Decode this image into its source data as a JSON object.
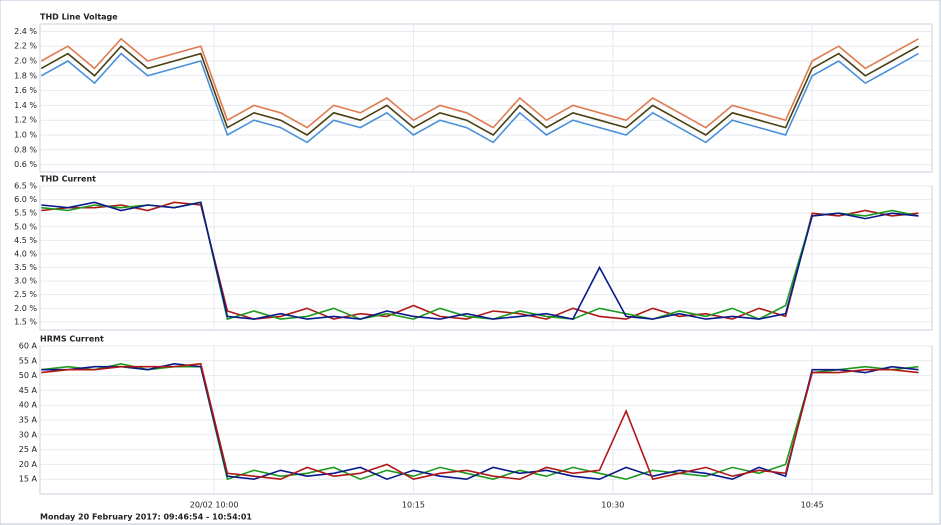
{
  "chart_data": [
    {
      "type": "line",
      "title": "THD Line Voltage",
      "x": [
        "09:47",
        "09:49",
        "09:51",
        "09:53",
        "09:55",
        "09:57",
        "09:59",
        "10:01",
        "10:03",
        "10:05",
        "10:07",
        "10:09",
        "10:11",
        "10:13",
        "10:15",
        "10:17",
        "10:19",
        "10:21",
        "10:23",
        "10:25",
        "10:27",
        "10:29",
        "10:31",
        "10:33",
        "10:35",
        "10:37",
        "10:39",
        "10:41",
        "10:43",
        "10:45",
        "10:47",
        "10:49",
        "10:51",
        "10:53"
      ],
      "xlim": [
        "09:46:54",
        "10:54:01"
      ],
      "ylim": [
        0.5,
        2.5
      ],
      "yticks": [
        {
          "value": 0.6,
          "label": "0.6 %"
        },
        {
          "value": 0.8,
          "label": "0.8 %"
        },
        {
          "value": 1.0,
          "label": "1.0 %"
        },
        {
          "value": 1.2,
          "label": "1.2 %"
        },
        {
          "value": 1.4,
          "label": "1.4 %"
        },
        {
          "value": 1.6,
          "label": "1.6 %"
        },
        {
          "value": 1.8,
          "label": "1.8 %"
        },
        {
          "value": 2.0,
          "label": "2.0 %"
        },
        {
          "value": 2.2,
          "label": "2.2 %"
        },
        {
          "value": 2.4,
          "label": "2.4 %"
        }
      ],
      "grid": true,
      "series": [
        {
          "color": "#4a90d9",
          "values": [
            1.8,
            2.0,
            1.7,
            2.1,
            1.8,
            1.9,
            2.0,
            1.0,
            1.2,
            1.1,
            0.9,
            1.2,
            1.1,
            1.3,
            1.0,
            1.2,
            1.1,
            0.9,
            1.3,
            1.0,
            1.2,
            1.1,
            1.0,
            1.3,
            1.1,
            0.9,
            1.2,
            1.1,
            1.0,
            1.8,
            2.0,
            1.7,
            1.9,
            2.1
          ]
        },
        {
          "color": "#e07b50",
          "values": [
            2.0,
            2.2,
            1.9,
            2.3,
            2.0,
            2.1,
            2.2,
            1.2,
            1.4,
            1.3,
            1.1,
            1.4,
            1.3,
            1.5,
            1.2,
            1.4,
            1.3,
            1.1,
            1.5,
            1.2,
            1.4,
            1.3,
            1.2,
            1.5,
            1.3,
            1.1,
            1.4,
            1.3,
            1.2,
            2.0,
            2.2,
            1.9,
            2.1,
            2.3
          ]
        },
        {
          "color": "#4a3f10",
          "values": [
            1.9,
            2.1,
            1.8,
            2.2,
            1.9,
            2.0,
            2.1,
            1.1,
            1.3,
            1.2,
            1.0,
            1.3,
            1.2,
            1.4,
            1.1,
            1.3,
            1.2,
            1.0,
            1.4,
            1.1,
            1.3,
            1.2,
            1.1,
            1.4,
            1.2,
            1.0,
            1.3,
            1.2,
            1.1,
            1.9,
            2.1,
            1.8,
            2.0,
            2.2
          ]
        }
      ]
    },
    {
      "type": "line",
      "title": "THD Current",
      "x": [
        "09:47",
        "09:49",
        "09:51",
        "09:53",
        "09:55",
        "09:57",
        "09:59",
        "10:01",
        "10:03",
        "10:05",
        "10:07",
        "10:09",
        "10:11",
        "10:13",
        "10:15",
        "10:17",
        "10:19",
        "10:21",
        "10:23",
        "10:25",
        "10:27",
        "10:29",
        "10:31",
        "10:33",
        "10:35",
        "10:37",
        "10:39",
        "10:41",
        "10:43",
        "10:45",
        "10:47",
        "10:49",
        "10:51",
        "10:53"
      ],
      "xlim": [
        "09:46:54",
        "10:54:01"
      ],
      "ylim": [
        1.2,
        6.5
      ],
      "yticks": [
        {
          "value": 1.5,
          "label": "1.5 %"
        },
        {
          "value": 2.0,
          "label": "2.0 %"
        },
        {
          "value": 2.5,
          "label": "2.5 %"
        },
        {
          "value": 3.0,
          "label": "3.0 %"
        },
        {
          "value": 3.5,
          "label": "3.5 %"
        },
        {
          "value": 4.0,
          "label": "4.0 %"
        },
        {
          "value": 4.5,
          "label": "4.5 %"
        },
        {
          "value": 5.0,
          "label": "5.0 %"
        },
        {
          "value": 5.5,
          "label": "5.5 %"
        },
        {
          "value": 6.0,
          "label": "6.0 %"
        },
        {
          "value": 6.5,
          "label": "6.5 %"
        }
      ],
      "grid": true,
      "series": [
        {
          "color": "#b01818",
          "values": [
            5.6,
            5.7,
            5.7,
            5.8,
            5.6,
            5.9,
            5.8,
            1.9,
            1.6,
            1.7,
            2.0,
            1.6,
            1.8,
            1.7,
            2.1,
            1.7,
            1.6,
            1.9,
            1.8,
            1.6,
            2.0,
            1.7,
            1.6,
            2.0,
            1.7,
            1.8,
            1.6,
            2.0,
            1.7,
            5.5,
            5.4,
            5.6,
            5.4,
            5.5
          ]
        },
        {
          "color": "#1e9a1e",
          "values": [
            5.7,
            5.6,
            5.8,
            5.7,
            5.8,
            5.7,
            5.9,
            1.6,
            1.9,
            1.6,
            1.7,
            2.0,
            1.6,
            1.8,
            1.6,
            2.0,
            1.7,
            1.6,
            1.9,
            1.7,
            1.6,
            2.0,
            1.8,
            1.6,
            1.9,
            1.7,
            2.0,
            1.6,
            2.1,
            5.4,
            5.5,
            5.4,
            5.6,
            5.4
          ]
        },
        {
          "color": "#0b1a8a",
          "values": [
            5.8,
            5.7,
            5.9,
            5.6,
            5.8,
            5.7,
            5.9,
            1.7,
            1.6,
            1.8,
            1.6,
            1.7,
            1.6,
            1.9,
            1.7,
            1.6,
            1.8,
            1.6,
            1.7,
            1.8,
            1.6,
            3.5,
            1.7,
            1.6,
            1.8,
            1.6,
            1.7,
            1.6,
            1.8,
            5.4,
            5.5,
            5.3,
            5.5,
            5.4
          ]
        }
      ]
    },
    {
      "type": "line",
      "title": "HRMS Current",
      "x": [
        "09:47",
        "09:49",
        "09:51",
        "09:53",
        "09:55",
        "09:57",
        "09:59",
        "10:01",
        "10:03",
        "10:05",
        "10:07",
        "10:09",
        "10:11",
        "10:13",
        "10:15",
        "10:17",
        "10:19",
        "10:21",
        "10:23",
        "10:25",
        "10:27",
        "10:29",
        "10:31",
        "10:33",
        "10:35",
        "10:37",
        "10:39",
        "10:41",
        "10:43",
        "10:45",
        "10:47",
        "10:49",
        "10:51",
        "10:53"
      ],
      "xlim": [
        "09:46:54",
        "10:54:01"
      ],
      "xticks": [
        {
          "value": "10:00",
          "label": "20/02 10:00"
        },
        {
          "value": "10:15",
          "label": "10:15"
        },
        {
          "value": "10:30",
          "label": "10:30"
        },
        {
          "value": "10:45",
          "label": "10:45"
        }
      ],
      "ylim": [
        10,
        60
      ],
      "yticks": [
        {
          "value": 15,
          "label": "15 A"
        },
        {
          "value": 20,
          "label": "20 A"
        },
        {
          "value": 25,
          "label": "25 A"
        },
        {
          "value": 30,
          "label": "30 A"
        },
        {
          "value": 35,
          "label": "35 A"
        },
        {
          "value": 40,
          "label": "40 A"
        },
        {
          "value": 45,
          "label": "45 A"
        },
        {
          "value": 50,
          "label": "50 A"
        },
        {
          "value": 55,
          "label": "55 A"
        },
        {
          "value": 60,
          "label": "60 A"
        }
      ],
      "grid": true,
      "series": [
        {
          "color": "#1e9a1e",
          "values": [
            52,
            53,
            52,
            54,
            52,
            53,
            53,
            15,
            18,
            16,
            17,
            19,
            15,
            18,
            16,
            19,
            17,
            15,
            18,
            16,
            19,
            17,
            15,
            18,
            17,
            16,
            19,
            17,
            20,
            51,
            52,
            53,
            52,
            53
          ]
        },
        {
          "color": "#0b1a8a",
          "values": [
            52,
            52,
            53,
            53,
            52,
            54,
            53,
            16,
            15,
            18,
            16,
            17,
            19,
            15,
            18,
            16,
            15,
            19,
            17,
            18,
            16,
            15,
            19,
            16,
            18,
            17,
            15,
            19,
            16,
            52,
            52,
            51,
            53,
            52
          ]
        },
        {
          "color": "#b01818",
          "values": [
            51,
            52,
            52,
            53,
            53,
            53,
            54,
            17,
            16,
            15,
            19,
            16,
            17,
            20,
            15,
            17,
            18,
            16,
            15,
            19,
            17,
            18,
            38,
            15,
            17,
            19,
            16,
            18,
            17,
            51,
            51,
            52,
            52,
            51
          ]
        }
      ]
    }
  ],
  "footer": "Monday 20 February 2017: 09:46:54 - 10:54:01"
}
